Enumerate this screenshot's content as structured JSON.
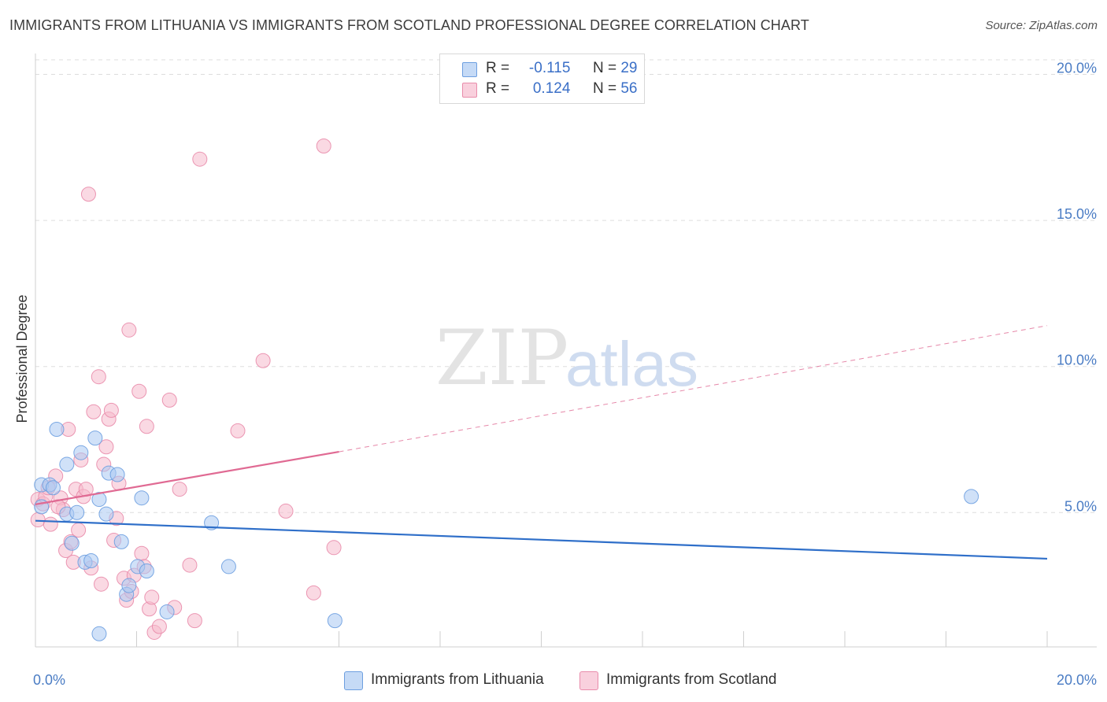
{
  "header": {
    "title": "IMMIGRANTS FROM LITHUANIA VS IMMIGRANTS FROM SCOTLAND PROFESSIONAL DEGREE CORRELATION CHART",
    "source": "Source: ZipAtlas.com"
  },
  "watermark": {
    "zip": "ZIP",
    "atlas": "atlas"
  },
  "legend": {
    "r_label": "R =",
    "n_label": "N =",
    "series": [
      {
        "name": "Immigrants from Lithuania",
        "r": "-0.115",
        "n": "29",
        "fill": "#a9c8f2",
        "stroke": "#6d9fe0"
      },
      {
        "name": "Immigrants from Scotland",
        "r": "0.124",
        "n": "56",
        "fill": "#f6b9cc",
        "stroke": "#e98cab"
      }
    ]
  },
  "colors": {
    "blue_point": "#a9c8f2",
    "blue_stroke": "#6d9fe0",
    "blue_line": "#2f6fc9",
    "pink_point": "#f6b9cc",
    "pink_stroke": "#e98cab",
    "pink_line": "#e06a93",
    "grid": "#dddddd",
    "tick_text": "#4a7cc4"
  },
  "chart_data": {
    "type": "scatter",
    "title": "IMMIGRANTS FROM LITHUANIA VS IMMIGRANTS FROM SCOTLAND PROFESSIONAL DEGREE CORRELATION CHART",
    "xlabel": "",
    "ylabel": "Professional Degree",
    "xlim": [
      0,
      20
    ],
    "ylim": [
      0.4,
      20.5
    ],
    "x_ticks": [
      {
        "value": 0,
        "label": "0.0%"
      },
      {
        "value": 20,
        "label": "20.0%"
      }
    ],
    "y_ticks": [
      {
        "value": 5,
        "label": "5.0%"
      },
      {
        "value": 10,
        "label": "10.0%"
      },
      {
        "value": 15,
        "label": "15.0%"
      },
      {
        "value": 20,
        "label": "20.0%"
      }
    ],
    "grid": true,
    "series": [
      {
        "name": "Immigrants from Lithuania",
        "points": [
          [
            0.12,
            5.2
          ],
          [
            0.12,
            5.95
          ],
          [
            0.28,
            5.95
          ],
          [
            0.35,
            5.85
          ],
          [
            0.42,
            7.85
          ],
          [
            0.62,
            4.95
          ],
          [
            0.62,
            6.65
          ],
          [
            0.72,
            3.95
          ],
          [
            0.82,
            5.0
          ],
          [
            0.9,
            7.05
          ],
          [
            0.98,
            3.3
          ],
          [
            1.1,
            3.35
          ],
          [
            1.18,
            7.55
          ],
          [
            1.26,
            0.85
          ],
          [
            1.26,
            5.45
          ],
          [
            1.4,
            4.95
          ],
          [
            1.45,
            6.35
          ],
          [
            1.62,
            6.3
          ],
          [
            1.7,
            4.0
          ],
          [
            1.8,
            2.2
          ],
          [
            1.85,
            2.5
          ],
          [
            2.02,
            3.15
          ],
          [
            2.1,
            5.5
          ],
          [
            2.2,
            3.0
          ],
          [
            2.6,
            1.6
          ],
          [
            3.48,
            4.65
          ],
          [
            3.82,
            3.15
          ],
          [
            5.92,
            1.3
          ],
          [
            18.5,
            5.55
          ]
        ],
        "trend": {
          "x": [
            0,
            20
          ],
          "y": [
            4.72,
            3.42
          ]
        }
      },
      {
        "name": "Immigrants from Scotland",
        "points": [
          [
            0.05,
            4.75
          ],
          [
            0.05,
            5.45
          ],
          [
            0.15,
            5.3
          ],
          [
            0.2,
            5.55
          ],
          [
            0.3,
            4.6
          ],
          [
            0.4,
            6.25
          ],
          [
            0.5,
            5.5
          ],
          [
            0.55,
            5.1
          ],
          [
            0.6,
            3.7
          ],
          [
            0.65,
            7.85
          ],
          [
            0.7,
            4.0
          ],
          [
            0.75,
            3.3
          ],
          [
            0.8,
            5.8
          ],
          [
            0.85,
            4.4
          ],
          [
            0.9,
            6.8
          ],
          [
            0.95,
            5.55
          ],
          [
            1.0,
            5.8
          ],
          [
            1.05,
            15.9
          ],
          [
            1.1,
            3.1
          ],
          [
            1.15,
            8.45
          ],
          [
            1.25,
            9.65
          ],
          [
            1.3,
            2.55
          ],
          [
            1.35,
            6.65
          ],
          [
            1.4,
            7.25
          ],
          [
            1.45,
            8.2
          ],
          [
            1.5,
            8.5
          ],
          [
            1.55,
            4.05
          ],
          [
            1.6,
            4.8
          ],
          [
            1.65,
            6.0
          ],
          [
            1.75,
            2.75
          ],
          [
            1.8,
            2.0
          ],
          [
            1.85,
            11.25
          ],
          [
            1.9,
            2.3
          ],
          [
            1.95,
            2.85
          ],
          [
            2.05,
            9.15
          ],
          [
            2.1,
            3.6
          ],
          [
            2.15,
            3.15
          ],
          [
            2.2,
            7.95
          ],
          [
            2.25,
            1.7
          ],
          [
            2.3,
            2.1
          ],
          [
            2.35,
            0.9
          ],
          [
            2.45,
            1.1
          ],
          [
            2.65,
            8.85
          ],
          [
            2.75,
            1.75
          ],
          [
            2.85,
            5.8
          ],
          [
            3.05,
            3.2
          ],
          [
            3.15,
            1.3
          ],
          [
            3.25,
            17.1
          ],
          [
            4.0,
            7.8
          ],
          [
            4.5,
            10.2
          ],
          [
            4.95,
            5.05
          ],
          [
            5.5,
            2.25
          ],
          [
            5.7,
            17.55
          ],
          [
            5.9,
            3.8
          ],
          [
            0.45,
            5.2
          ],
          [
            0.25,
            5.85
          ]
        ],
        "trend": {
          "x": [
            0,
            6.0
          ],
          "y": [
            5.28,
            7.08
          ]
        },
        "trend_dashed": {
          "x": [
            6.0,
            20
          ],
          "y": [
            7.08,
            11.4
          ]
        }
      }
    ]
  }
}
